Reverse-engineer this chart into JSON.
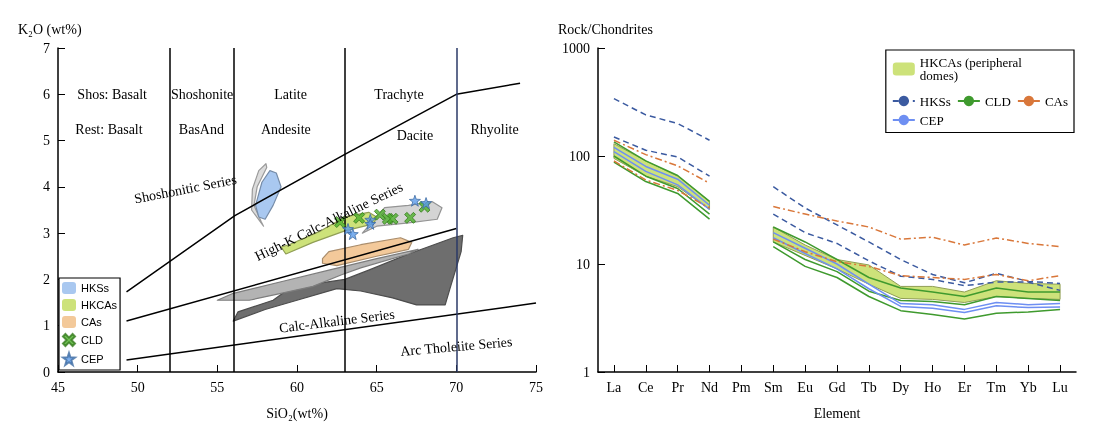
{
  "chart_data": [
    {
      "type": "scatter",
      "xlabel": "SiO₂(wt%)",
      "ylabel": "K₂O (wt%)",
      "xlim": [
        45,
        75
      ],
      "xticks": [
        45,
        50,
        55,
        60,
        65,
        70,
        75
      ],
      "ylim": [
        0,
        7
      ],
      "yticks": [
        0,
        1,
        2,
        3,
        4,
        5,
        6,
        7
      ],
      "legend": "bottom left",
      "marker": "none",
      "series": [
        {
          "type": "area",
          "color": "#6e6e6e",
          "x": [
            56.0,
            58.0,
            60.0,
            62.5,
            64.0,
            66.0,
            67.5,
            69.3,
            69.6,
            70.3,
            70.4,
            69.8,
            67.0,
            64.5,
            63.0,
            61.0,
            59.3,
            58.5,
            56.3
          ],
          "values": [
            1.1,
            1.35,
            1.55,
            1.8,
            1.75,
            1.6,
            1.45,
            1.45,
            1.8,
            2.6,
            2.95,
            2.9,
            2.55,
            2.2,
            2.0,
            1.9,
            1.75,
            1.55,
            1.3
          ]
        },
        {
          "type": "area",
          "color": "#b3b3b3",
          "x": [
            55.0,
            57.0,
            59.0,
            61.0,
            62.8,
            64.0,
            67.0,
            67.6,
            65.0,
            62.0,
            59.0,
            56.0
          ],
          "values": [
            1.55,
            1.55,
            1.7,
            1.85,
            2.1,
            2.25,
            2.55,
            2.65,
            2.45,
            2.2,
            1.95,
            1.7
          ]
        },
        {
          "type": "area",
          "color": "#d4d4d4",
          "x": [
            64.1,
            65.0,
            67.0,
            68.8,
            69.1,
            68.5,
            67.0,
            65.5
          ],
          "values": [
            3.0,
            3.15,
            3.22,
            3.3,
            3.55,
            3.68,
            3.6,
            3.55
          ]
        },
        {
          "type": "area",
          "color": "#dcdcdc",
          "x": [
            57.9,
            57.15,
            57.2,
            57.6,
            58.05,
            58.1,
            57.5,
            57.3,
            57.75
          ],
          "values": [
            3.15,
            3.5,
            3.95,
            4.35,
            4.5,
            4.42,
            4.0,
            3.6,
            3.25
          ]
        },
        {
          "name": "HKSs",
          "type": "area",
          "color": "#a9c8f0",
          "x": [
            57.6,
            57.4,
            57.8,
            58.3,
            58.7,
            59.0,
            58.5,
            58.0
          ],
          "values": [
            3.35,
            3.6,
            4.1,
            4.35,
            4.3,
            4.0,
            3.6,
            3.3
          ]
        },
        {
          "name": "HKCAs",
          "type": "area",
          "color": "#cde27a",
          "x": [
            59.0,
            59.3,
            61.0,
            63.0,
            64.8,
            65.0,
            64.5,
            63.0,
            61.5,
            59.5
          ],
          "values": [
            2.7,
            2.55,
            2.8,
            3.05,
            3.2,
            3.35,
            3.45,
            3.35,
            3.05,
            2.75
          ]
        },
        {
          "name": "CAs",
          "type": "area",
          "color": "#f3c99a",
          "x": [
            61.6,
            62.5,
            65.0,
            67.0,
            67.2,
            66.5,
            64.0,
            62.0,
            61.6
          ],
          "values": [
            2.35,
            2.3,
            2.5,
            2.65,
            2.8,
            2.9,
            2.75,
            2.6,
            2.45
          ]
        },
        {
          "type": "line",
          "color": "#000000",
          "x": [
            49.3,
            56.1,
            63.0,
            70.0,
            74.0
          ],
          "values": [
            1.73,
            3.38,
            4.7,
            6.0,
            6.24
          ]
        },
        {
          "type": "line",
          "color": "#000000",
          "x": [
            49.3,
            70.0
          ],
          "values": [
            1.1,
            3.1
          ]
        },
        {
          "type": "line",
          "color": "#000000",
          "x": [
            49.3,
            75.0
          ],
          "values": [
            0.26,
            1.49
          ]
        },
        {
          "name": "CLD",
          "marker": "cross",
          "color": "#4caf2a",
          "x": [
            62.7,
            63.9,
            65.2,
            65.7,
            66.0,
            67.1,
            68.0
          ],
          "values": [
            3.24,
            3.33,
            3.4,
            3.31,
            3.31,
            3.33,
            3.57
          ]
        },
        {
          "name": "CEP",
          "marker": "star",
          "color": "#5b9be8",
          "x": [
            63.2,
            63.5,
            64.6,
            64.6,
            67.4,
            68.1
          ],
          "values": [
            3.09,
            2.98,
            3.29,
            3.2,
            3.7,
            3.65
          ]
        }
      ],
      "ref_lines": [
        {
          "axis": "x",
          "value": 52,
          "color": "#000000"
        },
        {
          "axis": "x",
          "value": 56,
          "color": "#000000"
        },
        {
          "axis": "x",
          "value": 63,
          "color": "#000000"
        },
        {
          "axis": "x",
          "value": 70,
          "color": "#2b3a67"
        }
      ],
      "annotations": [
        "Shos: Basalt",
        "Shoshonite",
        "Latite",
        "Trachyte",
        "Rest: Basalt",
        "BasAnd",
        "Andesite",
        "Dacite",
        "Rhyolite",
        "Shoshonitic Series",
        "High-K Calc-Alkaline Series",
        "Calc-Alkaline Series",
        "Arc Tholeiite Series"
      ]
    },
    {
      "type": "line",
      "xlabel": "Element",
      "ylabel": "Rock/Chondrites",
      "categories": [
        "La",
        "Ce",
        "Pr",
        "Nd",
        "Pm",
        "Sm",
        "Eu",
        "Gd",
        "Tb",
        "Dy",
        "Ho",
        "Er",
        "Tm",
        "Yb",
        "Lu"
      ],
      "ylim": [
        1,
        1000
      ],
      "yticks": [
        1,
        10,
        100,
        1000
      ],
      "log": true,
      "legend": "top right",
      "marker": "none",
      "series": [
        {
          "name": "HKCAs (peripheral domes)",
          "color": "#cde27a",
          "values": [
            null,
            null,
            null,
            null,
            null,
            null,
            null,
            null,
            null,
            null,
            null,
            null,
            null,
            null,
            null
          ],
          "lower": [
            95,
            65,
            52,
            32,
            null,
            16,
            12,
            9,
            6.5,
            4.8,
            4.7,
            4.4,
            5,
            4.8,
            4.7
          ],
          "upper": [
            130,
            90,
            65,
            38,
            null,
            22,
            15,
            11,
            9.8,
            6.2,
            6.2,
            5.5,
            7,
            6.6,
            6.5
          ]
        },
        {
          "name": "HKSs",
          "color": "#3b5aa0",
          "line_style": "dashed",
          "values": [
            340,
            240,
            200,
            140,
            null,
            52,
            33,
            23,
            16,
            11,
            8,
            6.7,
            8.2,
            6.9,
            6.6
          ]
        },
        {
          "color": "#3b5aa0",
          "line_style": "dashed",
          "values": [
            150,
            113,
            98,
            65,
            null,
            29,
            19.5,
            15.5,
            10.7,
            7.7,
            7.2,
            6.3,
            6.8,
            6.8,
            5.7
          ]
        },
        {
          "name": "CLD",
          "color": "#3f9a2e",
          "values": [
            135,
            90,
            66,
            38,
            null,
            22,
            16,
            11,
            7.5,
            6,
            5.5,
            5,
            6,
            5.5,
            5.5
          ]
        },
        {
          "color": "#3f9a2e",
          "values": [
            100,
            65,
            50,
            29,
            null,
            16,
            11,
            8.5,
            5.6,
            4.6,
            4.5,
            4.2,
            5,
            4.8,
            4.6
          ]
        },
        {
          "color": "#3f9a2e",
          "values": [
            88,
            58,
            45,
            26,
            null,
            14.5,
            9.5,
            7.5,
            5,
            3.7,
            3.4,
            3.1,
            3.5,
            3.6,
            3.8
          ]
        },
        {
          "name": "CAs",
          "color": "#d9773a",
          "line_style": "dashdot",
          "values": [
            140,
            103,
            81,
            56,
            null,
            34,
            29,
            25,
            22,
            17,
            17.7,
            15,
            17.4,
            15.5,
            14.5
          ]
        },
        {
          "color": "#d9773a",
          "line_style": "dashdot",
          "values": [
            90,
            60,
            48,
            33,
            null,
            17,
            13,
            10.5,
            9.5,
            7.8,
            7.5,
            7.2,
            8,
            7,
            7.8
          ]
        },
        {
          "name": "CEP",
          "color": "#6e8ff2",
          "values": [
            120,
            80,
            61,
            35,
            null,
            19.5,
            14,
            10,
            6.5,
            4.3,
            4.2,
            3.8,
            4.4,
            4.2,
            4.3
          ]
        },
        {
          "color": "#6e8ff2",
          "values": [
            110,
            72,
            54,
            32,
            null,
            17.5,
            12.5,
            9,
            5.9,
            4.05,
            3.9,
            3.55,
            4.1,
            3.95,
            4.0
          ]
        }
      ]
    }
  ]
}
